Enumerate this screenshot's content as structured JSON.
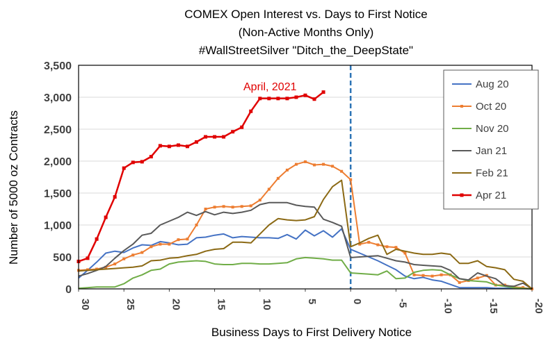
{
  "chart_data": {
    "type": "line",
    "title_lines": [
      "COMEX Open Interest  vs. Days to First Notice",
      "(Non-Active Months Only)",
      "#WallStreetSilver      \"Ditch_the_DeepState\""
    ],
    "xlabel": "Business Days to First Delivery Notice",
    "ylabel": "Number of 5000 oz Contracts",
    "xlim": [
      30,
      -20
    ],
    "ylim": [
      0,
      3500
    ],
    "x_ticks": [
      "30",
      "25",
      "20",
      "15",
      "10",
      "5",
      "0",
      "-5",
      "-10",
      "-15",
      "-20"
    ],
    "y_ticks": [
      "0",
      "500",
      "1,000",
      "1,500",
      "2,000",
      "2,500",
      "3,000",
      "3,500"
    ],
    "grid": "horizontal",
    "legend_position": "right",
    "reference_line": {
      "x": 0,
      "style": "dashed",
      "color": "#2e75b6"
    },
    "annotation": {
      "text": "April, 2021",
      "color": "#e00000"
    },
    "series": [
      {
        "name": "Aug 20",
        "color": "#4472c4",
        "marker": "none",
        "x": [
          30,
          29,
          28,
          27,
          26,
          25,
          24,
          23,
          22,
          21,
          20,
          19,
          18,
          17,
          16,
          15,
          14,
          13,
          12,
          11,
          10,
          9,
          8,
          7,
          6,
          5,
          4,
          3,
          2,
          1,
          0,
          -1,
          -2,
          -3,
          -4,
          -5,
          -6,
          -7,
          -8,
          -9,
          -10,
          -11,
          -12,
          -13,
          -14,
          -15,
          -16,
          -17,
          -18,
          -19,
          -20
        ],
        "values": [
          170,
          290,
          420,
          560,
          590,
          570,
          640,
          690,
          680,
          740,
          720,
          690,
          700,
          800,
          810,
          840,
          860,
          800,
          820,
          810,
          800,
          800,
          790,
          850,
          780,
          920,
          830,
          910,
          810,
          940,
          620,
          560,
          500,
          440,
          370,
          300,
          200,
          160,
          180,
          140,
          120,
          70,
          20,
          20,
          20,
          20,
          10,
          10,
          10,
          5,
          0
        ]
      },
      {
        "name": "Oct 20",
        "color": "#ed7d31",
        "marker": "square-small",
        "x": [
          30,
          29,
          28,
          27,
          26,
          25,
          24,
          23,
          22,
          21,
          20,
          19,
          18,
          17,
          16,
          15,
          14,
          13,
          12,
          11,
          10,
          9,
          8,
          7,
          6,
          5,
          4,
          3,
          2,
          1,
          0,
          -1,
          -2,
          -3,
          -4,
          -5,
          -6,
          -7,
          -8,
          -9,
          -10,
          -11,
          -12,
          -13,
          -14,
          -15,
          -16,
          -17,
          -18,
          -19,
          -20
        ],
        "values": [
          290,
          300,
          310,
          340,
          390,
          470,
          530,
          570,
          660,
          700,
          700,
          770,
          780,
          1000,
          1250,
          1280,
          1290,
          1280,
          1290,
          1300,
          1390,
          1560,
          1730,
          1860,
          1950,
          1990,
          1940,
          1950,
          1920,
          1840,
          1710,
          700,
          730,
          690,
          660,
          650,
          560,
          220,
          210,
          200,
          220,
          220,
          100,
          130,
          170,
          210,
          60,
          60,
          30,
          20,
          0
        ]
      },
      {
        "name": "Nov 20",
        "color": "#70ad47",
        "marker": "none",
        "x": [
          30,
          29,
          28,
          27,
          26,
          25,
          24,
          23,
          22,
          21,
          20,
          19,
          18,
          17,
          16,
          15,
          14,
          13,
          12,
          11,
          10,
          9,
          8,
          7,
          6,
          5,
          4,
          3,
          2,
          1,
          0,
          -1,
          -2,
          -3,
          -4,
          -5,
          -6,
          -7,
          -8,
          -9,
          -10,
          -11,
          -12,
          -13,
          -14,
          -15,
          -16,
          -17,
          -18,
          -19,
          -20
        ],
        "values": [
          10,
          20,
          30,
          30,
          30,
          80,
          170,
          220,
          290,
          310,
          390,
          420,
          430,
          440,
          430,
          390,
          380,
          380,
          400,
          400,
          390,
          390,
          400,
          410,
          470,
          490,
          480,
          470,
          450,
          450,
          250,
          240,
          230,
          220,
          280,
          160,
          170,
          260,
          290,
          300,
          290,
          220,
          160,
          130,
          120,
          110,
          60,
          40,
          20,
          10,
          0
        ]
      },
      {
        "name": "Jan 21",
        "color": "#595959",
        "marker": "none",
        "x": [
          30,
          29,
          28,
          27,
          26,
          25,
          24,
          23,
          22,
          21,
          20,
          19,
          18,
          17,
          16,
          15,
          14,
          13,
          12,
          11,
          10,
          9,
          8,
          7,
          6,
          5,
          4,
          3,
          2,
          1,
          0,
          -1,
          -2,
          -3,
          -4,
          -5,
          -6,
          -7,
          -8,
          -9,
          -10,
          -11,
          -12,
          -13,
          -14,
          -15,
          -16,
          -17,
          -18,
          -19,
          -20
        ],
        "values": [
          200,
          240,
          290,
          350,
          480,
          600,
          700,
          840,
          870,
          1000,
          1060,
          1120,
          1200,
          1150,
          1210,
          1160,
          1200,
          1180,
          1200,
          1230,
          1320,
          1350,
          1350,
          1350,
          1310,
          1290,
          1280,
          1090,
          1040,
          980,
          490,
          500,
          510,
          520,
          480,
          440,
          420,
          380,
          370,
          360,
          350,
          290,
          160,
          140,
          250,
          200,
          160,
          50,
          40,
          90,
          0
        ]
      },
      {
        "name": "Feb 21",
        "color": "#8b6914",
        "marker": "none",
        "x": [
          30,
          29,
          28,
          27,
          26,
          25,
          24,
          23,
          22,
          21,
          20,
          19,
          18,
          17,
          16,
          15,
          14,
          13,
          12,
          11,
          10,
          9,
          8,
          7,
          6,
          5,
          4,
          3,
          2,
          1,
          0,
          -1,
          -2,
          -3,
          -4,
          -5,
          -6,
          -7,
          -8,
          -9,
          -10,
          -11,
          -12,
          -13,
          -14,
          -15,
          -16,
          -17,
          -18,
          -19,
          -20
        ],
        "values": [
          280,
          290,
          300,
          310,
          320,
          330,
          340,
          360,
          440,
          450,
          480,
          490,
          520,
          540,
          590,
          620,
          630,
          730,
          730,
          720,
          860,
          1000,
          1100,
          1080,
          1070,
          1080,
          1130,
          1400,
          1600,
          1700,
          660,
          720,
          790,
          840,
          540,
          620,
          590,
          560,
          540,
          540,
          560,
          540,
          400,
          400,
          440,
          350,
          330,
          300,
          150,
          120,
          0
        ]
      },
      {
        "name": "Apr 21",
        "color": "#e00000",
        "marker": "square",
        "x": [
          30,
          29,
          28,
          27,
          26,
          25,
          24,
          23,
          22,
          21,
          20,
          19,
          18,
          17,
          16,
          15,
          14,
          13,
          12,
          11,
          10,
          9,
          8,
          7,
          6,
          5,
          4,
          3
        ],
        "values": [
          430,
          480,
          780,
          1120,
          1440,
          1890,
          1980,
          1990,
          2070,
          2240,
          2230,
          2250,
          2230,
          2300,
          2380,
          2380,
          2380,
          2460,
          2530,
          2780,
          2980,
          2980,
          2980,
          2980,
          3000,
          3030,
          2970,
          3080
        ]
      }
    ]
  }
}
